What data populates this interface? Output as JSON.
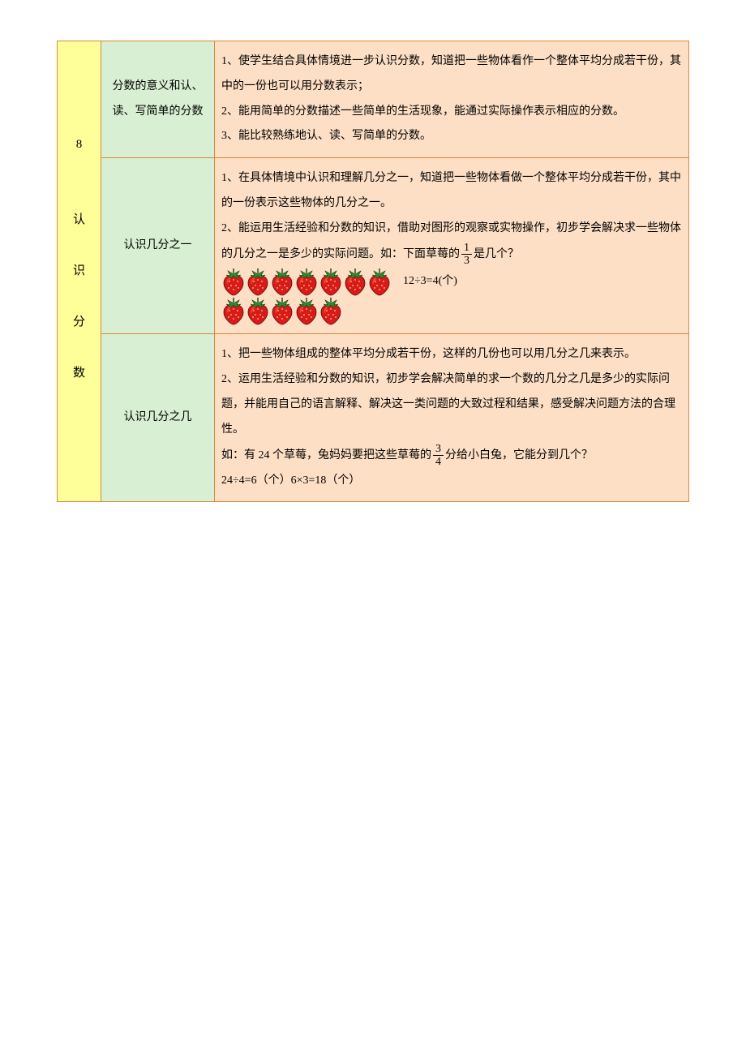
{
  "table": {
    "border_color": "#d88a3a",
    "columns": {
      "chapter_bg": "#feff99",
      "topic_bg": "#d9efd3",
      "content_bg": "#fddfc5"
    },
    "chapter": {
      "number": "8",
      "title_chars": [
        "认",
        "识",
        "分",
        "数"
      ]
    },
    "rows": [
      {
        "topic": "分数的意义和认、读、写简单的分数",
        "content_lines": [
          "1、使学生结合具体情境进一步认识分数，知道把一些物体看作一个整体平均分成若干份，其中的一份也可以用分数表示；",
          "2、能用简单的分数描述一些简单的生活现象，能通过实际操作表示相应的分数。",
          "3、能比较熟练地认、读、写简单的分数。"
        ]
      },
      {
        "topic": "认识几分之一",
        "content_lines": [
          "1、在具体情境中认识和理解几分之一，知道把一些物体看做一个整体平均分成若干份，其中的一份表示这些物体的几分之一。",
          "2、能运用生活经验和分数的知识，借助对图形的观察或实物操作，初步学会解决求一些物体的几分之一是多少的实际问题。如：下面草莓的"
        ],
        "frac": {
          "n": "1",
          "d": "3"
        },
        "tail": "是几个？",
        "strawberries": {
          "row1": 7,
          "row2": 5
        },
        "calc": "12÷3=4(个)"
      },
      {
        "topic": "认识几分之几",
        "content_lines_a": [
          "1、把一些物体组成的整体平均分成若干份，这样的几份也可以用几分之几来表示。",
          "2、运用生活经验和分数的知识，初步学会解决简单的求一个数的几分之几是多少的实际问题，并能用自己的语言解释、解决这一类问题的大致过程和结果，感受解决问题方法的合理性。"
        ],
        "line_b_pre": "如：有 24 个草莓，兔妈妈要把这些草莓的",
        "frac": {
          "n": "3",
          "d": "4"
        },
        "line_b_post": "分给小白兔，它能分到几个？",
        "calc": "24÷4=6（个）6×3=18（个）"
      }
    ]
  },
  "strawberry_svg": {
    "width": 30,
    "height": 36,
    "leaf_fill": "#2e8b2e",
    "leaf_stroke": "#14420f",
    "body_fill": "#d91a1a",
    "body_highlight": "#ff5a3a",
    "body_stroke": "#5a0a0a",
    "seed_fill": "#ffd37a"
  }
}
